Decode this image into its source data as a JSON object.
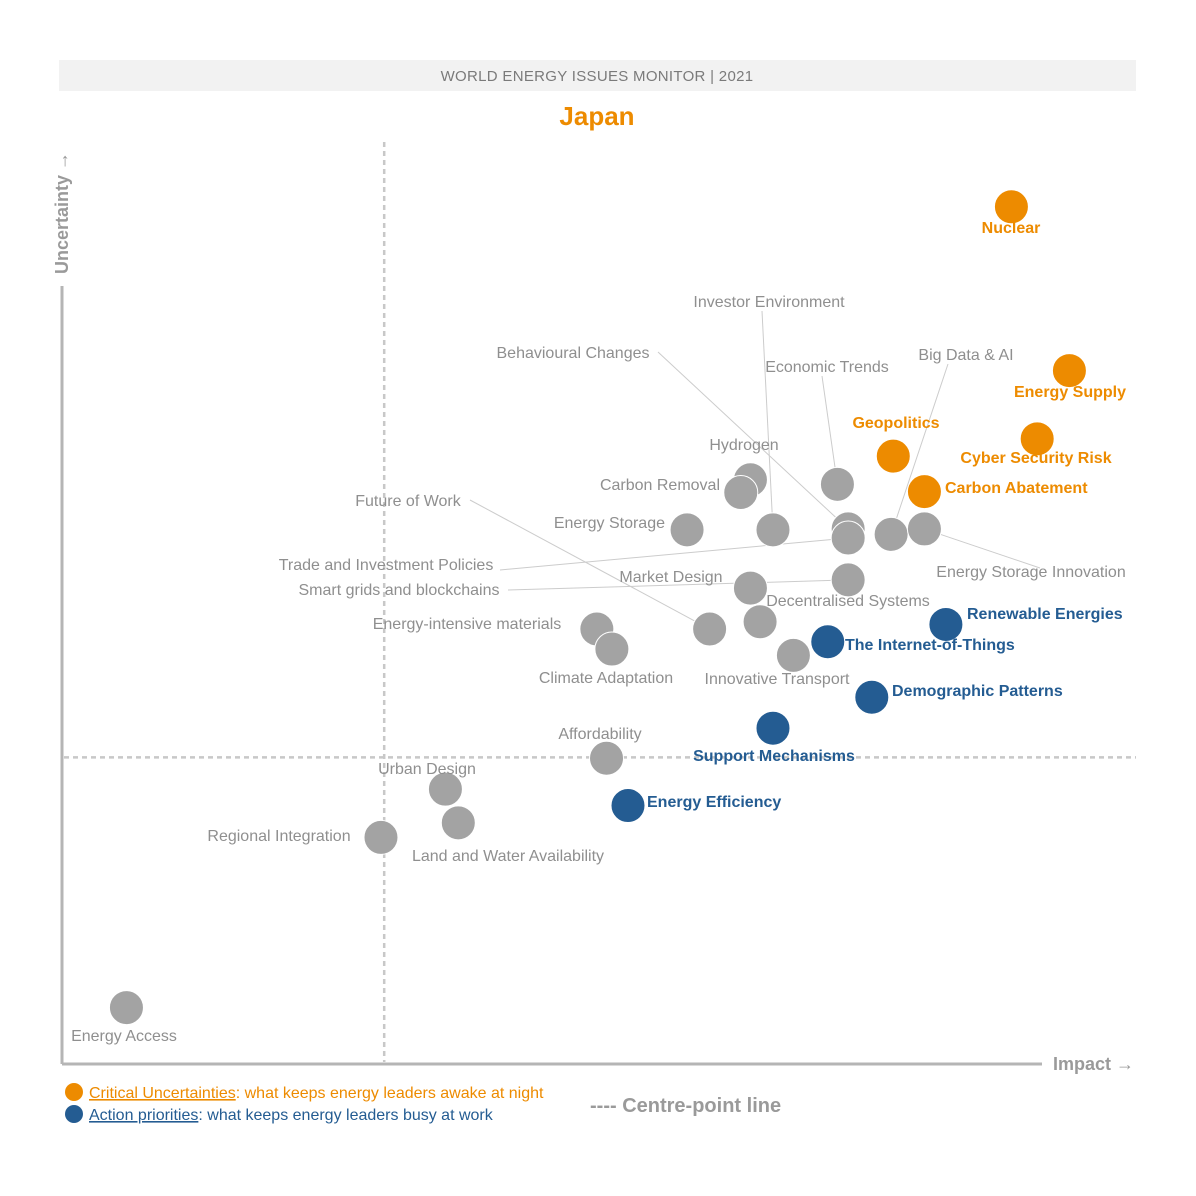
{
  "header": {
    "banner": "WORLD ENERGY ISSUES MONITOR | 2021",
    "country": "Japan"
  },
  "colors": {
    "critical": "#ed8b00",
    "action": "#245c92",
    "neutral": "#a3a3a3",
    "axis": "#b5b5b5",
    "banner_bg": "#f2f2f2"
  },
  "legend": {
    "critical_title": "Critical Uncertainties",
    "critical_desc": ": what keeps energy leaders awake at night",
    "action_title": "Action priorities",
    "action_desc": ": what keeps energy leaders busy at work",
    "centre_line": "---- Centre-point line"
  },
  "chart_data": {
    "type": "scatter",
    "title": "Japan",
    "xlabel": "Impact →",
    "ylabel": "Uncertainty →",
    "xlim": [
      0,
      100
    ],
    "ylim": [
      0,
      100
    ],
    "grid": false,
    "centre_point": {
      "x": 30,
      "y": 33.7
    },
    "points": [
      {
        "name": "Nuclear",
        "x": 88.4,
        "y": 94.2,
        "cat": "critical"
      },
      {
        "name": "Energy Supply",
        "x": 93.8,
        "y": 76.2,
        "cat": "critical"
      },
      {
        "name": "Cyber Security Risk",
        "x": 90.8,
        "y": 68.7,
        "cat": "critical"
      },
      {
        "name": "Geopolitics",
        "x": 77.4,
        "y": 66.8,
        "cat": "critical"
      },
      {
        "name": "Carbon Abatement",
        "x": 80.3,
        "y": 62.9,
        "cat": "critical"
      },
      {
        "name": "Renewable Energies",
        "x": 82.3,
        "y": 48.3,
        "cat": "action"
      },
      {
        "name": "The Internet-of-Things",
        "x": 71.3,
        "y": 46.4,
        "cat": "action"
      },
      {
        "name": "Demographic Patterns",
        "x": 75.4,
        "y": 40.3,
        "cat": "action"
      },
      {
        "name": "Support Mechanisms",
        "x": 66.2,
        "y": 36.9,
        "cat": "action"
      },
      {
        "name": "Energy Efficiency",
        "x": 52.7,
        "y": 28.4,
        "cat": "action"
      },
      {
        "name": "Hydrogen",
        "x": 64.1,
        "y": 64.2,
        "cat": "neutral"
      },
      {
        "name": "Carbon Removal",
        "x": 63.2,
        "y": 62.8,
        "cat": "neutral"
      },
      {
        "name": "Energy Storage",
        "x": 58.2,
        "y": 58.7,
        "cat": "neutral"
      },
      {
        "name": "Investor Environment",
        "x": 66.2,
        "y": 58.7,
        "cat": "neutral"
      },
      {
        "name": "Economic Trends",
        "x": 72.2,
        "y": 63.7,
        "cat": "neutral"
      },
      {
        "name": "Behavioural Changes",
        "x": 73.2,
        "y": 58.8,
        "cat": "neutral"
      },
      {
        "name": "Trade and Investment Policies",
        "x": 73.2,
        "y": 57.8,
        "cat": "neutral"
      },
      {
        "name": "Big Data & AI",
        "x": 77.2,
        "y": 58.2,
        "cat": "neutral"
      },
      {
        "name": "Energy Storage Innovation",
        "x": 80.3,
        "y": 58.8,
        "cat": "neutral"
      },
      {
        "name": "Smart grids and blockchains",
        "x": 73.2,
        "y": 53.2,
        "cat": "neutral"
      },
      {
        "name": "Market Design",
        "x": 64.1,
        "y": 52.3,
        "cat": "neutral"
      },
      {
        "name": "Decentralised Systems",
        "x": 65.0,
        "y": 48.6,
        "cat": "neutral"
      },
      {
        "name": "Future of Work",
        "x": 60.3,
        "y": 47.8,
        "cat": "neutral"
      },
      {
        "name": "Innovative Transport",
        "x": 68.1,
        "y": 44.9,
        "cat": "neutral"
      },
      {
        "name": "Energy-intensive materials",
        "x": 49.8,
        "y": 47.8,
        "cat": "neutral"
      },
      {
        "name": "Climate Adaptation",
        "x": 51.2,
        "y": 45.6,
        "cat": "neutral"
      },
      {
        "name": "Affordability",
        "x": 50.7,
        "y": 33.6,
        "cat": "neutral"
      },
      {
        "name": "Urban Design",
        "x": 35.7,
        "y": 30.2,
        "cat": "neutral"
      },
      {
        "name": "Land and Water Availability",
        "x": 36.9,
        "y": 26.5,
        "cat": "neutral"
      },
      {
        "name": "Regional Integration",
        "x": 29.7,
        "y": 24.9,
        "cat": "neutral"
      },
      {
        "name": "Energy Access",
        "x": 6.0,
        "y": 6.2,
        "cat": "neutral"
      }
    ]
  }
}
